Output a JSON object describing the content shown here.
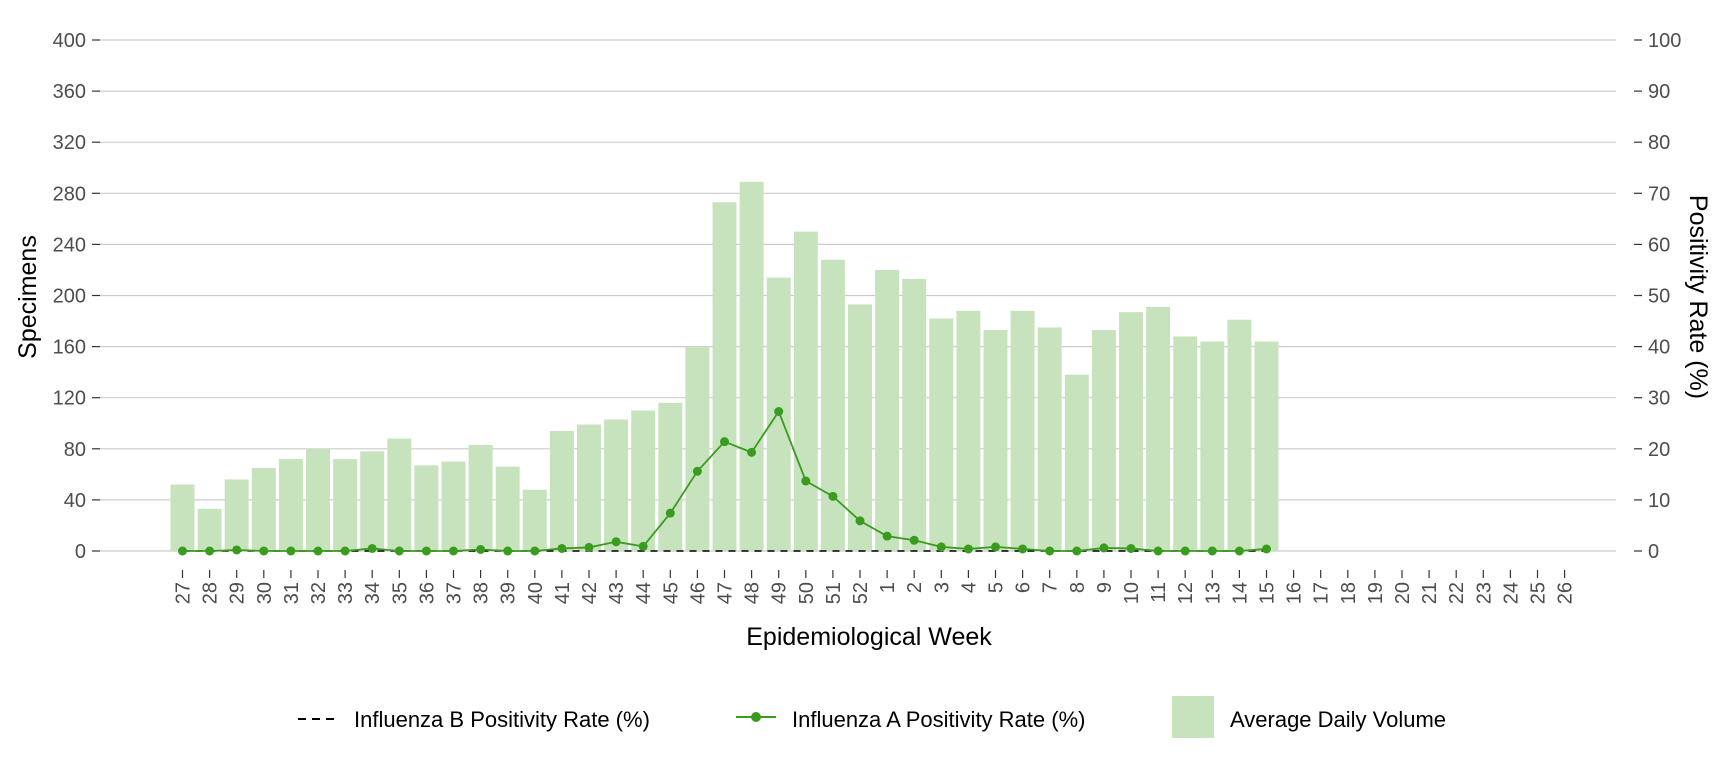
{
  "chart_data": {
    "type": "bar",
    "xlabel": "Epidemiological Week",
    "ylabel_left": "Specimens",
    "ylabel_right": "Positivity Rate (%)",
    "ylim_left": [
      0,
      400
    ],
    "ylim_right": [
      0,
      100
    ],
    "yticks_left": [
      "0",
      "40",
      "80",
      "120",
      "160",
      "200",
      "240",
      "280",
      "320",
      "360",
      "400"
    ],
    "yticks_right": [
      "0",
      "10",
      "20",
      "30",
      "40",
      "50",
      "60",
      "70",
      "80",
      "90",
      "100"
    ],
    "grid": "horizontal",
    "legend_position": "bottom",
    "categories": [
      "27",
      "28",
      "29",
      "30",
      "31",
      "32",
      "33",
      "34",
      "35",
      "36",
      "37",
      "38",
      "39",
      "40",
      "41",
      "42",
      "43",
      "44",
      "45",
      "46",
      "47",
      "48",
      "49",
      "50",
      "51",
      "52",
      "1",
      "2",
      "3",
      "4",
      "5",
      "6",
      "7",
      "8",
      "9",
      "10",
      "11",
      "12",
      "13",
      "14",
      "15",
      "16",
      "17",
      "18",
      "19",
      "20",
      "21",
      "22",
      "23",
      "24",
      "25",
      "26"
    ],
    "bars": {
      "name": "Average Daily Volume",
      "color": "#c7e3bd",
      "values": [
        52,
        33,
        56,
        65,
        72,
        80,
        72,
        78,
        88,
        67,
        70,
        83,
        66,
        48,
        94,
        99,
        103,
        110,
        116,
        160,
        273,
        289,
        214,
        250,
        228,
        193,
        220,
        213,
        182,
        188,
        173,
        188,
        175,
        138,
        173,
        187,
        191,
        168,
        164,
        181,
        164,
        null,
        null,
        null,
        null,
        null,
        null,
        null,
        null,
        null,
        null,
        null
      ]
    },
    "series": [
      {
        "name": "Influenza A Positivity Rate (%)",
        "style": "solid-with-markers",
        "color": "#3a9c1f",
        "values": [
          0,
          0,
          0.2,
          0,
          0,
          0,
          0,
          0.5,
          0,
          0,
          0,
          0.3,
          0,
          0,
          0.5,
          0.7,
          1.8,
          0.9,
          7.4,
          15.6,
          21.4,
          19.3,
          27.3,
          13.7,
          10.7,
          5.9,
          2.9,
          2.1,
          0.8,
          0.4,
          0.8,
          0.4,
          0,
          0,
          0.6,
          0.5,
          0,
          0,
          0,
          0,
          0.4,
          null,
          null,
          null,
          null,
          null,
          null,
          null,
          null,
          null,
          null,
          null
        ]
      },
      {
        "name": "Influenza B Positivity Rate (%)",
        "style": "dashed",
        "color": "#000000",
        "values": [
          0,
          0,
          0,
          0,
          0,
          0,
          0,
          0,
          0,
          0,
          0,
          0,
          0,
          0,
          0,
          0,
          0,
          0,
          0,
          0,
          0,
          0,
          0,
          0,
          0,
          0,
          0,
          0,
          0,
          0,
          0,
          0,
          0,
          0,
          0,
          0,
          0,
          0,
          0,
          0,
          0,
          null,
          null,
          null,
          null,
          null,
          null,
          null,
          null,
          null,
          null,
          null
        ]
      }
    ],
    "legend": [
      {
        "label": "Influenza B Positivity Rate (%)",
        "type": "dashed-line"
      },
      {
        "label": "Influenza A Positivity Rate (%)",
        "type": "line-marker"
      },
      {
        "label": "Average Daily Volume",
        "type": "bar"
      }
    ],
    "colors": {
      "bar": "#c7e3bd",
      "flu_a": "#3a9c1f",
      "flu_b": "#000000",
      "grid": "#cccccc",
      "tick_text": "#4d4d4d",
      "axis_title": "#000000"
    }
  }
}
